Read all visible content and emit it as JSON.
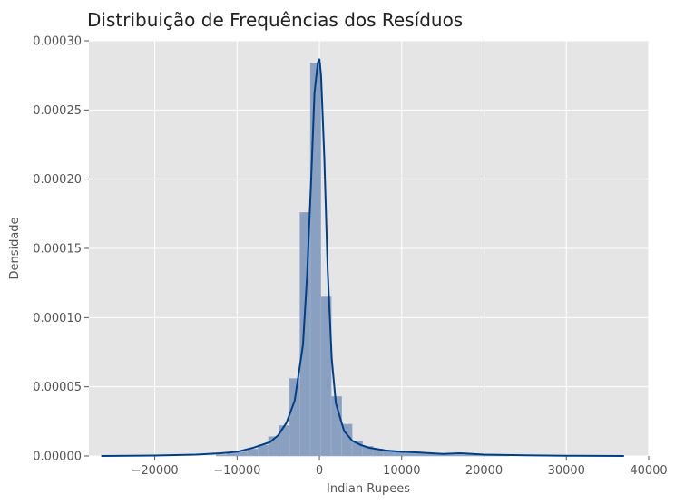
{
  "chart_data": {
    "type": "bar",
    "title": "Distribuição de Frequências dos Resíduos",
    "xlabel": "Indian Rupees",
    "ylabel": "Densidade",
    "xlim": [
      -28000,
      40000
    ],
    "ylim": [
      0,
      0.0003
    ],
    "grid": true,
    "x_ticks": [
      -20000,
      -10000,
      0,
      10000,
      20000,
      30000,
      40000
    ],
    "x_tick_labels": [
      "−20000",
      "−10000",
      "0",
      "10000",
      "20000",
      "30000",
      "40000"
    ],
    "y_ticks": [
      0,
      5e-05,
      0.0001,
      0.00015,
      0.0002,
      0.00025,
      0.0003
    ],
    "y_tick_labels": [
      "0.00000",
      "0.00005",
      "0.00010",
      "0.00015",
      "0.00020",
      "0.00025",
      "0.00030"
    ],
    "histogram": {
      "bin_width": 1270,
      "bins_start": [
        -26500,
        -25230,
        -23960,
        -22690,
        -21420,
        -20150,
        -18880,
        -17610,
        -16340,
        -15070,
        -13800,
        -12530,
        -11260,
        -9990,
        -8720,
        -7450,
        -6180,
        -4910,
        -3640,
        -2370,
        -1100,
        170,
        1440,
        2710,
        3980,
        5250,
        6520,
        7790,
        9060,
        10330,
        11600,
        12870,
        14140,
        15410,
        16680,
        17950,
        19220,
        20490,
        21760,
        23030,
        24300,
        25570,
        26840,
        28110,
        29380,
        30650,
        31920,
        33190,
        34460,
        35730
      ],
      "densities": [
        0.0,
        0.0,
        0.0,
        0.0,
        0.0,
        0.0,
        0.0,
        0.0,
        0.0,
        0.0,
        0.0,
        1e-06,
        2e-06,
        3e-06,
        5e-06,
        8e-06,
        1.4e-05,
        2.2e-05,
        5.6e-05,
        0.000176,
        0.000284,
        0.000115,
        4.3e-05,
        2.3e-05,
        1.1e-05,
        7e-06,
        5e-06,
        4e-06,
        3e-06,
        2e-06,
        2e-06,
        1.5e-06,
        1.5e-06,
        1e-06,
        1e-06,
        1e-06,
        5e-07,
        5e-07,
        5e-07,
        0.0,
        0.0,
        0.0,
        0.0,
        0.0,
        0.0,
        0.0,
        0.0,
        0.0,
        0.0,
        0.0
      ]
    },
    "kde": {
      "x": [
        -26500,
        -20000,
        -15000,
        -12000,
        -10000,
        -8000,
        -6000,
        -5000,
        -4000,
        -3000,
        -2000,
        -1500,
        -1000,
        -600,
        -200,
        0,
        200,
        600,
        1000,
        1500,
        2000,
        3000,
        4000,
        5000,
        6000,
        8000,
        10000,
        12000,
        15000,
        17000,
        20000,
        25000,
        30000,
        37000
      ],
      "y": [
        0.0,
        3e-07,
        1e-06,
        2e-06,
        3e-06,
        6e-06,
        1e-05,
        1.5e-05,
        2.4e-05,
        4e-05,
        8e-05,
        0.00013,
        0.0002,
        0.000262,
        0.000284,
        0.000287,
        0.000275,
        0.000215,
        0.000135,
        7e-05,
        3.8e-05,
        1.8e-05,
        1.1e-05,
        8e-06,
        6e-06,
        4e-06,
        3e-06,
        2.5e-06,
        1.5e-06,
        2e-06,
        1e-06,
        5e-07,
        2e-07,
        0.0
      ],
      "color": "#003f87"
    },
    "colors": {
      "plot_background": "#e5e5e5",
      "grid": "#ffffff",
      "bar_fill": "#8aa0c0",
      "bar_edge": "#9fb1cd",
      "kde_line": "#003f87"
    }
  }
}
